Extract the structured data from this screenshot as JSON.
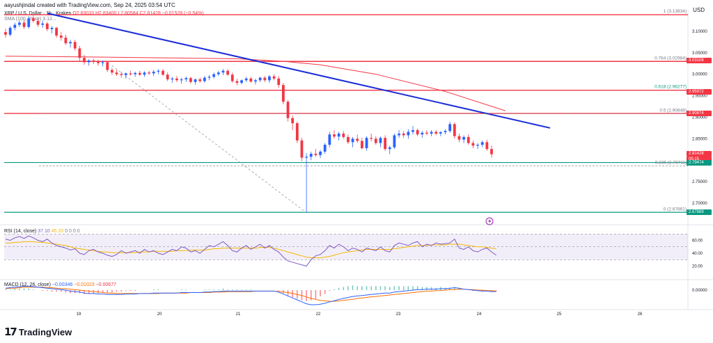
{
  "header": {
    "attribution": "aayushjindal created with TradingView.com, Sep 24, 2025 03:54 UTC",
    "currency": "USD",
    "symbol": "XRP / U.S. Dollar · 1h · Kraken",
    "ohlc": "O2.83033 H2.83400 L2.80584 C2.81428 −0.01528 (−0.54%)",
    "sma_label": "SMA (100, close) 3.12..."
  },
  "colors": {
    "up": "#2962ff",
    "down": "#f23645",
    "trendline": "#1b2dd8",
    "sma": "#f23645",
    "fib": "#787b86",
    "green": "#089981",
    "red": "#f23645",
    "rsi": "#7e57c2",
    "rsi_ma": "#f5b700",
    "macd": "#2962ff",
    "signal": "#ff6d00"
  },
  "price_axis": [
    "3.10000",
    "3.05000",
    "3.00000",
    "2.95000",
    "2.90000",
    "2.85000",
    "2.80000",
    "2.75000",
    "2.70000"
  ],
  "time_axis": [
    "19",
    "20",
    "21",
    "22",
    "23",
    "24",
    "25",
    "26"
  ],
  "fib_levels": [
    {
      "ratio": "1",
      "price": "3.13834",
      "label": "1 (3.13834)"
    },
    {
      "ratio": "0.764",
      "price": "3.02984",
      "label": "0.764 (3.02984)"
    },
    {
      "ratio": "0.618",
      "price": "2.96277",
      "label": "0.618 (2.96277)"
    },
    {
      "ratio": "0.5",
      "price": "2.90848",
      "label": "0.5 (2.90848)"
    },
    {
      "ratio": "0.236",
      "price": "2.78711",
      "label": "0.236 (2.78711)"
    },
    {
      "ratio": "0",
      "price": "2.67861",
      "label": "0 (2.67861)"
    }
  ],
  "price_labels": [
    {
      "text": "3.03108",
      "color": "#f23645",
      "price": 3.03108
    },
    {
      "text": "2.95972",
      "color": "#f23645",
      "price": 2.95972
    },
    {
      "text": "2.90874",
      "color": "#f23645",
      "price": 2.90874
    },
    {
      "text": "2.81428",
      "color": "#f23645",
      "price": 2.81428
    },
    {
      "text": "05:15",
      "color": "#f23645",
      "price": 2.8075
    },
    {
      "text": "2.79474",
      "color": "#089981",
      "price": 2.79474
    },
    {
      "text": "2.67889",
      "color": "#089981",
      "price": 2.67889
    }
  ],
  "rsi": {
    "label": "RSI (14, close)",
    "value": "37.10",
    "ma_value": "45.20",
    "extras": "0 0 0 0",
    "axis": [
      "60.00",
      "40.00",
      "20.00"
    ]
  },
  "macd": {
    "label": "MACD (12, 26, close)",
    "macd_value": "−0.00346",
    "signal_value": "−0.01023",
    "hist_value": "−0.00677",
    "axis": [
      "0.00000"
    ]
  },
  "logo_text": "TradingView",
  "chart_data": {
    "type": "candlestick",
    "title": "XRP / U.S. Dollar · 1h · Kraken",
    "x_ticks": [
      "19",
      "20",
      "21",
      "22",
      "23",
      "24",
      "25",
      "26"
    ],
    "y_range": [
      2.65,
      3.15
    ],
    "candles": [
      [
        3.098,
        3.106,
        3.085,
        3.092
      ],
      [
        3.092,
        3.112,
        3.088,
        3.108
      ],
      [
        3.108,
        3.12,
        3.102,
        3.115
      ],
      [
        3.115,
        3.125,
        3.11,
        3.12
      ],
      [
        3.12,
        3.126,
        3.105,
        3.11
      ],
      [
        3.11,
        3.135,
        3.106,
        3.13
      ],
      [
        3.13,
        3.138,
        3.12,
        3.124
      ],
      [
        3.124,
        3.13,
        3.11,
        3.115
      ],
      [
        3.115,
        3.125,
        3.108,
        3.118
      ],
      [
        3.118,
        3.122,
        3.1,
        3.105
      ],
      [
        3.105,
        3.112,
        3.095,
        3.108
      ],
      [
        3.108,
        3.11,
        3.085,
        3.09
      ],
      [
        3.09,
        3.098,
        3.078,
        3.085
      ],
      [
        3.085,
        3.092,
        3.068,
        3.072
      ],
      [
        3.072,
        3.08,
        3.062,
        3.075
      ],
      [
        3.075,
        3.08,
        3.055,
        3.06
      ],
      [
        3.06,
        3.066,
        3.03,
        3.038
      ],
      [
        3.038,
        3.045,
        3.022,
        3.028
      ],
      [
        3.028,
        3.035,
        3.02,
        3.032
      ],
      [
        3.032,
        3.036,
        3.024,
        3.03
      ],
      [
        3.03,
        3.034,
        3.02,
        3.026
      ],
      [
        3.026,
        3.032,
        3.018,
        3.028
      ],
      [
        3.028,
        3.03,
        3.005,
        3.01
      ],
      [
        3.01,
        3.015,
        2.998,
        3.004
      ],
      [
        3.004,
        3.01,
        2.996,
        3.0
      ],
      [
        3.0,
        3.006,
        2.992,
        2.998
      ],
      [
        2.998,
        3.004,
        2.99,
        3.002
      ],
      [
        3.002,
        3.008,
        2.996,
        3.0
      ],
      [
        3.0,
        3.006,
        2.994,
        3.003
      ],
      [
        3.003,
        3.008,
        2.996,
        2.999
      ],
      [
        2.999,
        3.007,
        2.994,
        3.004
      ],
      [
        3.004,
        3.008,
        2.998,
        3.002
      ],
      [
        3.002,
        3.01,
        2.996,
        3.006
      ],
      [
        3.006,
        3.012,
        3.0,
        3.008
      ],
      [
        3.008,
        3.012,
        2.996,
        2.999
      ],
      [
        2.999,
        3.004,
        2.984,
        2.988
      ],
      [
        2.988,
        2.994,
        2.98,
        2.99
      ],
      [
        2.99,
        2.996,
        2.982,
        2.986
      ],
      [
        2.986,
        2.992,
        2.978,
        2.988
      ],
      [
        2.988,
        2.995,
        2.982,
        2.991
      ],
      [
        2.991,
        2.994,
        2.978,
        2.982
      ],
      [
        2.982,
        2.99,
        2.976,
        2.988
      ],
      [
        2.988,
        2.992,
        2.98,
        2.984
      ],
      [
        2.984,
        2.996,
        2.98,
        2.992
      ],
      [
        2.992,
        2.998,
        2.986,
        2.994
      ],
      [
        2.994,
        3.004,
        2.99,
        3.0
      ],
      [
        3.0,
        3.008,
        2.996,
        3.004
      ],
      [
        3.004,
        3.012,
        2.998,
        3.008
      ],
      [
        3.008,
        3.012,
        2.996,
        2.999
      ],
      [
        2.999,
        3.004,
        2.98,
        2.984
      ],
      [
        2.984,
        2.99,
        2.974,
        2.98
      ],
      [
        2.98,
        2.988,
        2.976,
        2.986
      ],
      [
        2.986,
        2.994,
        2.982,
        2.99
      ],
      [
        2.99,
        2.994,
        2.98,
        2.983
      ],
      [
        2.983,
        2.99,
        2.976,
        2.986
      ],
      [
        2.986,
        2.994,
        2.982,
        2.992
      ],
      [
        2.992,
        2.996,
        2.982,
        2.986
      ],
      [
        2.986,
        2.998,
        2.98,
        2.995
      ],
      [
        2.995,
        3.0,
        2.986,
        2.99
      ],
      [
        2.99,
        2.996,
        2.968,
        2.975
      ],
      [
        2.975,
        2.98,
        2.93,
        2.936
      ],
      [
        2.936,
        2.94,
        2.89,
        2.898
      ],
      [
        2.898,
        2.904,
        2.87,
        2.886
      ],
      [
        2.886,
        2.89,
        2.84,
        2.846
      ],
      [
        2.846,
        2.852,
        2.798,
        2.806
      ],
      [
        2.806,
        2.816,
        2.678,
        2.808
      ],
      [
        2.808,
        2.82,
        2.8,
        2.815
      ],
      [
        2.815,
        2.826,
        2.808,
        2.812
      ],
      [
        2.812,
        2.824,
        2.805,
        2.82
      ],
      [
        2.82,
        2.84,
        2.815,
        2.836
      ],
      [
        2.836,
        2.866,
        2.83,
        2.86
      ],
      [
        2.86,
        2.87,
        2.85,
        2.855
      ],
      [
        2.855,
        2.866,
        2.846,
        2.862
      ],
      [
        2.862,
        2.868,
        2.85,
        2.854
      ],
      [
        2.854,
        2.86,
        2.838,
        2.842
      ],
      [
        2.842,
        2.854,
        2.83,
        2.85
      ],
      [
        2.85,
        2.86,
        2.84,
        2.845
      ],
      [
        2.845,
        2.852,
        2.825,
        2.828
      ],
      [
        2.828,
        2.856,
        2.822,
        2.852
      ],
      [
        2.852,
        2.862,
        2.844,
        2.85
      ],
      [
        2.85,
        2.856,
        2.836,
        2.84
      ],
      [
        2.84,
        2.855,
        2.83,
        2.852
      ],
      [
        2.852,
        2.858,
        2.822,
        2.826
      ],
      [
        2.826,
        2.834,
        2.814,
        2.83
      ],
      [
        2.83,
        2.862,
        2.826,
        2.858
      ],
      [
        2.858,
        2.87,
        2.852,
        2.862
      ],
      [
        2.862,
        2.868,
        2.852,
        2.858
      ],
      [
        2.858,
        2.872,
        2.85,
        2.866
      ],
      [
        2.866,
        2.88,
        2.86,
        2.87
      ],
      [
        2.87,
        2.874,
        2.856,
        2.86
      ],
      [
        2.86,
        2.868,
        2.852,
        2.864
      ],
      [
        2.864,
        2.87,
        2.858,
        2.862
      ],
      [
        2.862,
        2.87,
        2.856,
        2.866
      ],
      [
        2.866,
        2.87,
        2.858,
        2.862
      ],
      [
        2.862,
        2.868,
        2.856,
        2.865
      ],
      [
        2.865,
        2.872,
        2.86,
        2.868
      ],
      [
        2.868,
        2.89,
        2.864,
        2.884
      ],
      [
        2.884,
        2.888,
        2.85,
        2.856
      ],
      [
        2.856,
        2.862,
        2.842,
        2.848
      ],
      [
        2.848,
        2.858,
        2.84,
        2.854
      ],
      [
        2.854,
        2.86,
        2.836,
        2.84
      ],
      [
        2.84,
        2.846,
        2.828,
        2.834
      ],
      [
        2.834,
        2.84,
        2.826,
        2.836
      ],
      [
        2.836,
        2.846,
        2.83,
        2.842
      ],
      [
        2.842,
        2.848,
        2.822,
        2.826
      ],
      [
        2.826,
        2.834,
        2.806,
        2.814
      ]
    ],
    "sma100": [
      [
        0,
        3.042
      ],
      [
        20,
        3.04
      ],
      [
        35,
        3.038
      ],
      [
        50,
        3.036
      ],
      [
        60,
        3.03
      ],
      [
        68,
        3.022
      ],
      [
        80,
        3.0
      ],
      [
        95,
        2.96
      ],
      [
        108,
        2.915
      ]
    ],
    "trendline": [
      [
        0,
        3.145
      ],
      [
        120,
        2.875
      ]
    ],
    "fib_guide": [
      [
        23,
        3.02
      ],
      [
        65,
        2.678
      ]
    ],
    "rsi_values": [
      62,
      60,
      64,
      66,
      63,
      67,
      64,
      60,
      58,
      62,
      56,
      52,
      50,
      48,
      45,
      47,
      40,
      38,
      44,
      46,
      42,
      40,
      37,
      35,
      38,
      44,
      40,
      42,
      44,
      40,
      46,
      42,
      44,
      40,
      38,
      42,
      46,
      44,
      50,
      48,
      42,
      44,
      40,
      46,
      52,
      50,
      54,
      58,
      52,
      44,
      42,
      48,
      52,
      46,
      50,
      54,
      48,
      52,
      46,
      42,
      34,
      28,
      26,
      24,
      22,
      20,
      30,
      36,
      38,
      44,
      52,
      48,
      54,
      50,
      44,
      48,
      46,
      42,
      48,
      46,
      44,
      50,
      44,
      42,
      52,
      56,
      54,
      52,
      56,
      58,
      50,
      54,
      52,
      56,
      54,
      55,
      56,
      62,
      48,
      46,
      50,
      44,
      42,
      46,
      48,
      42,
      37
    ],
    "rsi_ma": [
      56,
      56,
      57,
      57,
      58,
      58,
      58,
      57,
      57,
      56,
      55,
      54,
      53,
      52,
      50,
      48,
      47,
      46,
      45,
      44,
      43,
      42,
      42,
      41,
      41,
      41,
      41,
      41,
      41,
      42,
      42,
      42,
      43,
      43,
      43,
      43,
      43,
      44,
      44,
      44,
      45,
      45,
      45,
      45,
      46,
      47,
      47,
      48,
      48,
      48,
      48,
      48,
      48,
      48,
      48,
      49,
      49,
      49,
      48,
      46,
      44,
      42,
      40,
      38,
      36,
      34,
      33,
      33,
      33,
      34,
      35,
      37,
      39,
      41,
      42,
      43,
      44,
      45,
      46,
      46,
      46,
      46,
      46,
      46,
      47,
      48,
      49,
      50,
      51,
      52,
      52,
      52,
      53,
      53,
      53,
      53,
      54,
      54,
      54,
      53,
      52,
      51,
      50,
      50,
      49,
      48,
      47
    ],
    "macd_values": [
      0.004,
      0.005,
      0.006,
      0.007,
      0.008,
      0.008,
      0.007,
      0.006,
      0.005,
      0.004,
      0.003,
      0.002,
      0.001,
      0.0,
      -0.002,
      -0.003,
      -0.004,
      -0.006,
      -0.007,
      -0.007,
      -0.008,
      -0.008,
      -0.009,
      -0.009,
      -0.009,
      -0.009,
      -0.008,
      -0.008,
      -0.008,
      -0.007,
      -0.007,
      -0.007,
      -0.006,
      -0.006,
      -0.006,
      -0.006,
      -0.006,
      -0.006,
      -0.005,
      -0.005,
      -0.005,
      -0.005,
      -0.005,
      -0.004,
      -0.004,
      -0.003,
      -0.003,
      -0.002,
      -0.002,
      -0.002,
      -0.002,
      -0.002,
      -0.002,
      -0.002,
      -0.002,
      -0.002,
      -0.002,
      -0.002,
      -0.002,
      -0.004,
      -0.008,
      -0.012,
      -0.016,
      -0.02,
      -0.024,
      -0.028,
      -0.03,
      -0.03,
      -0.029,
      -0.027,
      -0.024,
      -0.022,
      -0.019,
      -0.017,
      -0.015,
      -0.013,
      -0.012,
      -0.011,
      -0.01,
      -0.009,
      -0.008,
      -0.007,
      -0.006,
      -0.006,
      -0.004,
      -0.003,
      -0.002,
      -0.001,
      0.0,
      0.001,
      0.001,
      0.002,
      0.002,
      0.002,
      0.003,
      0.003,
      0.004,
      0.005,
      0.004,
      0.002,
      0.001,
      0.0,
      -0.001,
      -0.002,
      -0.002,
      -0.003,
      -0.003
    ],
    "signal_values": [
      0.003,
      0.004,
      0.004,
      0.005,
      0.006,
      0.006,
      0.006,
      0.006,
      0.006,
      0.005,
      0.005,
      0.004,
      0.003,
      0.003,
      0.002,
      0.001,
      0.0,
      -0.001,
      -0.002,
      -0.003,
      -0.004,
      -0.005,
      -0.006,
      -0.006,
      -0.007,
      -0.007,
      -0.007,
      -0.007,
      -0.007,
      -0.007,
      -0.007,
      -0.007,
      -0.007,
      -0.007,
      -0.006,
      -0.006,
      -0.006,
      -0.006,
      -0.006,
      -0.006,
      -0.005,
      -0.005,
      -0.005,
      -0.005,
      -0.005,
      -0.004,
      -0.004,
      -0.004,
      -0.003,
      -0.003,
      -0.003,
      -0.003,
      -0.003,
      -0.003,
      -0.002,
      -0.002,
      -0.002,
      -0.002,
      -0.002,
      -0.003,
      -0.004,
      -0.005,
      -0.007,
      -0.009,
      -0.011,
      -0.014,
      -0.017,
      -0.019,
      -0.021,
      -0.022,
      -0.023,
      -0.023,
      -0.022,
      -0.021,
      -0.02,
      -0.019,
      -0.017,
      -0.016,
      -0.015,
      -0.014,
      -0.013,
      -0.012,
      -0.011,
      -0.01,
      -0.009,
      -0.008,
      -0.007,
      -0.006,
      -0.005,
      -0.004,
      -0.003,
      -0.002,
      -0.002,
      -0.001,
      -0.001,
      0.0,
      0.001,
      0.001,
      0.002,
      0.002,
      0.001,
      0.001,
      0.0,
      0.0,
      -0.001,
      -0.001,
      -0.002
    ]
  }
}
